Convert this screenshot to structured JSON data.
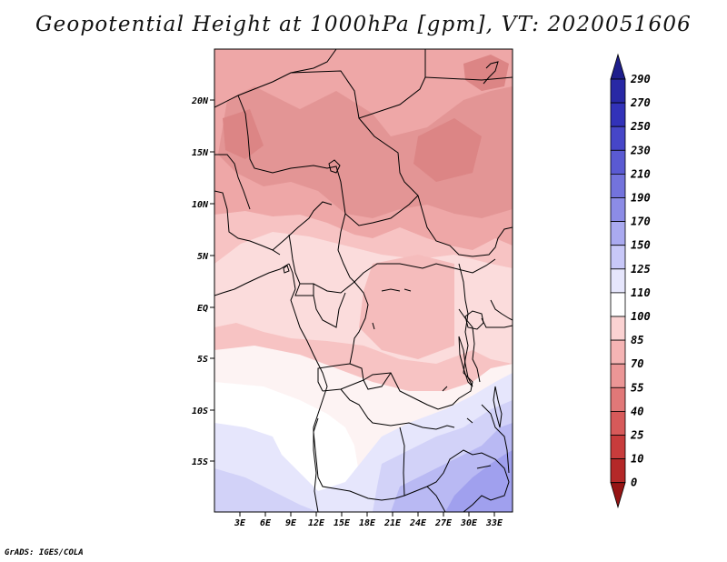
{
  "title": "Geopotential Height at 1000hPa [gpm], VT: 2020051606",
  "credit": "GrADS: IGES/COLA",
  "map": {
    "x_ticks": [
      "3E",
      "6E",
      "9E",
      "12E",
      "15E",
      "18E",
      "21E",
      "24E",
      "27E",
      "30E",
      "33E"
    ],
    "y_ticks": [
      "20N",
      "15N",
      "10N",
      "5N",
      "EQ",
      "5S",
      "10S",
      "15S"
    ]
  },
  "colorbar": {
    "levels": [
      "290",
      "270",
      "250",
      "230",
      "210",
      "190",
      "170",
      "150",
      "125",
      "110",
      "100",
      "85",
      "70",
      "55",
      "40",
      "25",
      "10",
      "0"
    ],
    "colors": [
      "#1e1e8c",
      "#2828a5",
      "#3232b9",
      "#4646c8",
      "#5a5ad2",
      "#7373dc",
      "#8c8ce6",
      "#aaaaf0",
      "#c8c8f8",
      "#e6e6fc",
      "#ffffff",
      "#fbd2d2",
      "#f5b4b4",
      "#eb9696",
      "#e17878",
      "#d75a5a",
      "#c83c3c",
      "#b42828",
      "#961414"
    ]
  }
}
